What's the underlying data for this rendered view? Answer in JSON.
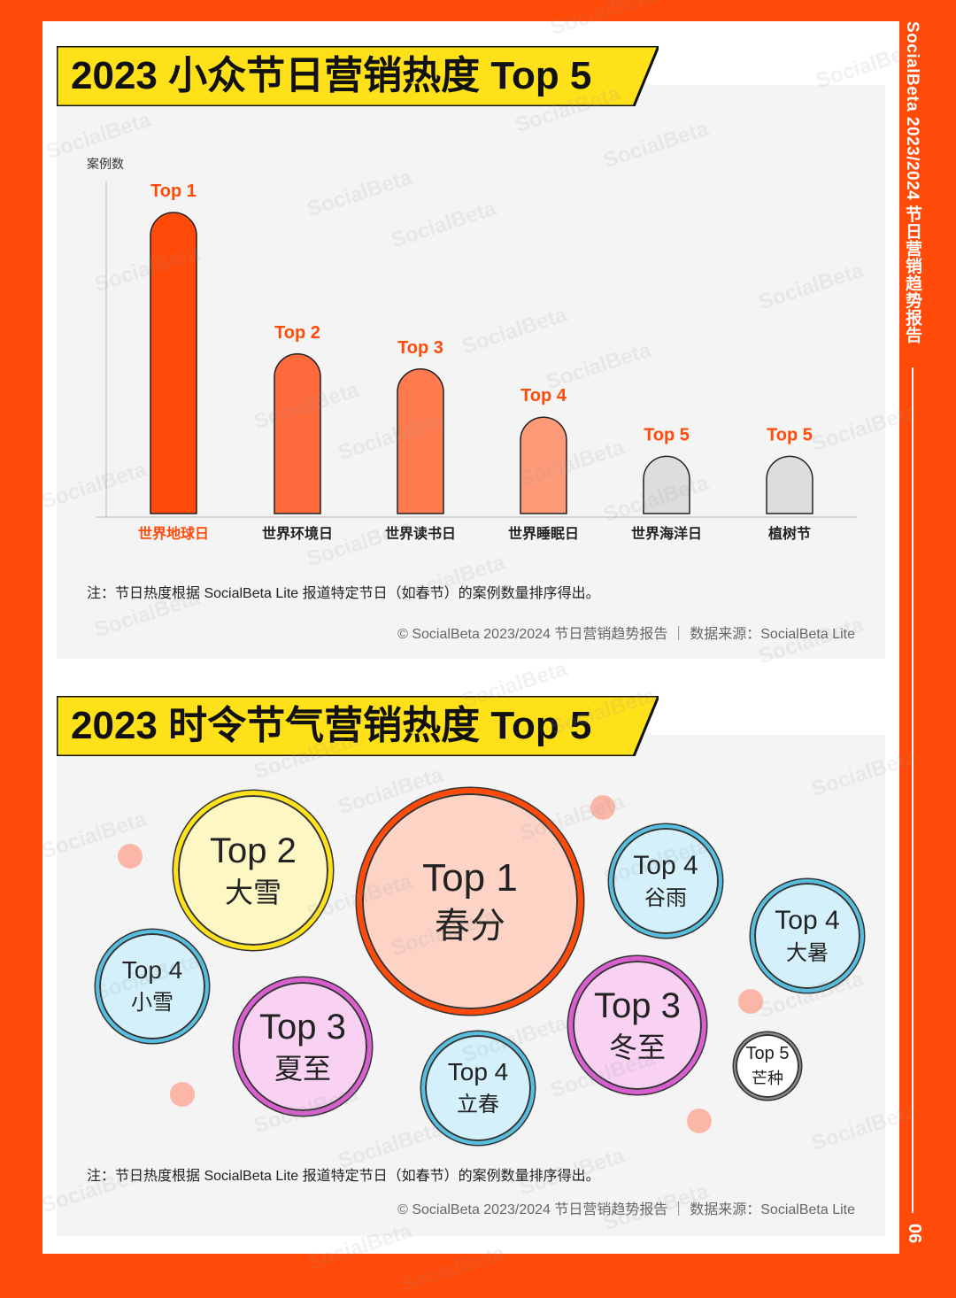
{
  "side": {
    "title": "SocialBeta 2023/2024 节日营销趋势报告",
    "page_number": "06"
  },
  "watermark": "SocialBeta",
  "colors": {
    "brand_orange": "#ff4a0a",
    "banner_yellow": "#ffe11a",
    "bar_top1": "#ff4a0a",
    "bar_top2": "#ff6a3c",
    "bar_top3": "#ff7a4e",
    "bar_top4": "#ff9a78",
    "bar_top5": "#dddddd"
  },
  "section1": {
    "title": "2023 小众节日营销热度 Top 5",
    "note": "注：节日热度根据 SocialBeta Lite 报道特定节日（如春节）的案例数量排序得出。",
    "source": "© SocialBeta 2023/2024 节日营销趋势报告 ｜ 数据来源：SocialBeta Lite"
  },
  "section2": {
    "title": "2023 时令节气营销热度 Top 5",
    "note": "注：节日热度根据 SocialBeta Lite 报道特定节日（如春节）的案例数量排序得出。",
    "source": "© SocialBeta 2023/2024 节日营销趋势报告 ｜ 数据来源：SocialBeta Lite"
  },
  "chart_data": [
    {
      "type": "bar",
      "ylabel": "案例数",
      "categories": [
        "世界地球日",
        "世界环境日",
        "世界读书日",
        "世界睡眠日",
        "世界海洋日",
        "植树节"
      ],
      "values": [
        100,
        53,
        48,
        32,
        19,
        19
      ],
      "rank_labels": [
        "Top 1",
        "Top 2",
        "Top 3",
        "Top 4",
        "Top 5",
        "Top 5"
      ],
      "ylim": [
        0,
        100
      ],
      "grid": false,
      "bar_colors": [
        "#ff4a0a",
        "#ff6a3c",
        "#ff7a4e",
        "#ff9a78",
        "#dddddd",
        "#dddddd"
      ]
    },
    {
      "type": "bubble",
      "items": [
        {
          "rank": "Top 1",
          "name": "春分",
          "relative_size": 1.0,
          "fill": "#fdd3c6",
          "border": "#ff4a0a"
        },
        {
          "rank": "Top 2",
          "name": "大雪",
          "relative_size": 0.7,
          "fill": "#fdf7c4",
          "border": "#ffe11a"
        },
        {
          "rank": "Top 3",
          "name": "夏至",
          "relative_size": 0.61,
          "fill": "#f9d2f3",
          "border": "#d95fd0"
        },
        {
          "rank": "Top 3",
          "name": "冬至",
          "relative_size": 0.61,
          "fill": "#f9d2f3",
          "border": "#d95fd0"
        },
        {
          "rank": "Top 4",
          "name": "谷雨",
          "relative_size": 0.5,
          "fill": "#d3f0fb",
          "border": "#56bfe0"
        },
        {
          "rank": "Top 4",
          "name": "大暑",
          "relative_size": 0.5,
          "fill": "#d3f0fb",
          "border": "#56bfe0"
        },
        {
          "rank": "Top 4",
          "name": "小雪",
          "relative_size": 0.5,
          "fill": "#d3f0fb",
          "border": "#56bfe0"
        },
        {
          "rank": "Top 4",
          "name": "立春",
          "relative_size": 0.5,
          "fill": "#d3f0fb",
          "border": "#56bfe0"
        },
        {
          "rank": "Top 5",
          "name": "芒种",
          "relative_size": 0.3,
          "fill": "#ffffff",
          "border": "#888888"
        }
      ]
    }
  ]
}
